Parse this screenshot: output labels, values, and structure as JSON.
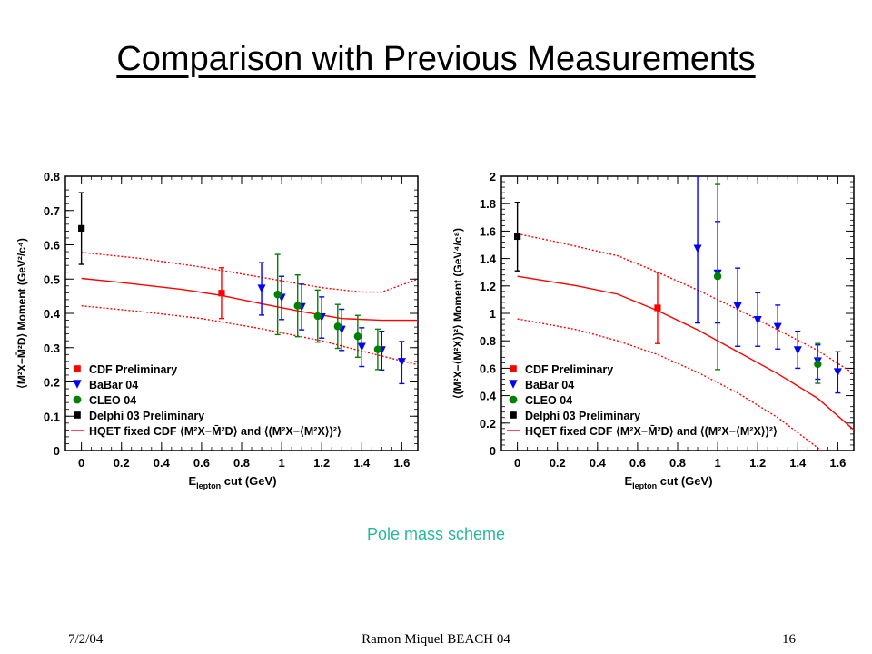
{
  "slide": {
    "title": "Comparison with Previous Measurements",
    "caption": "Pole mass scheme",
    "footer_date": "7/2/04",
    "footer_center": "Ramon Miquel     BEACH 04",
    "footer_page": "16"
  },
  "chart_data": [
    {
      "type": "scatter",
      "xlabel_main": "E",
      "xlabel_sub": "lepton",
      "xlabel_rest": " cut (GeV)",
      "ylabel": "⟨M²X−M̄²D⟩ Moment (GeV²/c⁴)",
      "xlim": [
        -0.08,
        1.68
      ],
      "ylim": [
        0,
        0.8
      ],
      "xticks": [
        "0",
        "0.2",
        "0.4",
        "0.6",
        "0.8",
        "1",
        "1.2",
        "1.4",
        "1.6"
      ],
      "xtick_values": [
        0,
        0.2,
        0.4,
        0.6,
        0.8,
        1.0,
        1.2,
        1.4,
        1.6
      ],
      "yticks": [
        "0",
        "0.1",
        "0.2",
        "0.3",
        "0.4",
        "0.5",
        "0.6",
        "0.7",
        "0.8"
      ],
      "ytick_values": [
        0,
        0.1,
        0.2,
        0.3,
        0.4,
        0.5,
        0.6,
        0.7,
        0.8
      ],
      "legend_position": "bottom-left",
      "legend": [
        {
          "label": "CDF Preliminary",
          "marker": "square",
          "color": "#ff0000"
        },
        {
          "label": "BaBar 04",
          "marker": "triangle-down",
          "color": "#0000ff"
        },
        {
          "label": "CLEO 04",
          "marker": "circle",
          "color": "#008000"
        },
        {
          "label": "Delphi 03 Preliminary",
          "marker": "square",
          "color": "#000000"
        },
        {
          "label": "HQET fixed CDF ⟨M²X−M̄²D⟩ and ⟨(M²X−⟨M²X⟩)²⟩",
          "marker": "line",
          "color": "#ff0000"
        }
      ],
      "series": [
        {
          "name": "Delphi 03 Preliminary",
          "marker": "square",
          "color": "#000000",
          "points": [
            {
              "x": 0.0,
              "y": 0.648,
              "lo": 0.543,
              "hi": 0.752
            }
          ]
        },
        {
          "name": "CDF Preliminary",
          "marker": "square",
          "color": "#ff0000",
          "points": [
            {
              "x": 0.7,
              "y": 0.459,
              "lo": 0.385,
              "hi": 0.533
            }
          ]
        },
        {
          "name": "BaBar 04",
          "marker": "triangle-down",
          "color": "#0000ff",
          "points": [
            {
              "x": 0.9,
              "y": 0.472,
              "lo": 0.395,
              "hi": 0.548
            },
            {
              "x": 1.0,
              "y": 0.445,
              "lo": 0.382,
              "hi": 0.508
            },
            {
              "x": 1.1,
              "y": 0.418,
              "lo": 0.352,
              "hi": 0.485
            },
            {
              "x": 1.2,
              "y": 0.388,
              "lo": 0.328,
              "hi": 0.448
            },
            {
              "x": 1.3,
              "y": 0.352,
              "lo": 0.292,
              "hi": 0.412
            },
            {
              "x": 1.4,
              "y": 0.302,
              "lo": 0.245,
              "hi": 0.358
            },
            {
              "x": 1.5,
              "y": 0.292,
              "lo": 0.235,
              "hi": 0.348
            },
            {
              "x": 1.6,
              "y": 0.258,
              "lo": 0.195,
              "hi": 0.318
            }
          ]
        },
        {
          "name": "CLEO 04",
          "marker": "circle",
          "color": "#008000",
          "points": [
            {
              "x": 0.98,
              "y": 0.455,
              "lo": 0.338,
              "hi": 0.572
            },
            {
              "x": 1.08,
              "y": 0.422,
              "lo": 0.332,
              "hi": 0.512
            },
            {
              "x": 1.18,
              "y": 0.392,
              "lo": 0.316,
              "hi": 0.468
            },
            {
              "x": 1.28,
              "y": 0.362,
              "lo": 0.298,
              "hi": 0.426
            },
            {
              "x": 1.38,
              "y": 0.333,
              "lo": 0.272,
              "hi": 0.394
            },
            {
              "x": 1.48,
              "y": 0.295,
              "lo": 0.236,
              "hi": 0.354
            }
          ]
        }
      ],
      "curves": [
        {
          "name": "central",
          "style": "solid",
          "color": "#ff0000",
          "x": [
            0,
            0.2,
            0.5,
            0.7,
            0.9,
            1.1,
            1.3,
            1.5,
            1.68
          ],
          "y": [
            0.502,
            0.49,
            0.47,
            0.452,
            0.428,
            0.405,
            0.385,
            0.38,
            0.38
          ]
        },
        {
          "name": "upper",
          "style": "dotted",
          "color": "#ff0000",
          "x": [
            0,
            0.3,
            0.6,
            0.9,
            1.2,
            1.4,
            1.5,
            1.68
          ],
          "y": [
            0.578,
            0.56,
            0.535,
            0.505,
            0.475,
            0.462,
            0.462,
            0.5
          ]
        },
        {
          "name": "lower",
          "style": "dotted",
          "color": "#ff0000",
          "x": [
            0,
            0.3,
            0.6,
            0.9,
            1.2,
            1.4,
            1.68
          ],
          "y": [
            0.422,
            0.405,
            0.385,
            0.355,
            0.32,
            0.29,
            0.25
          ]
        }
      ]
    },
    {
      "type": "scatter",
      "xlabel_main": "E",
      "xlabel_sub": "lepton",
      "xlabel_rest": " cut (GeV)",
      "ylabel": "⟨(M²X−⟨M²X⟩)²⟩ Moment (GeV⁴/c⁸)",
      "xlim": [
        -0.08,
        1.68
      ],
      "ylim": [
        0,
        2
      ],
      "xticks": [
        "0",
        "0.2",
        "0.4",
        "0.6",
        "0.8",
        "1",
        "1.2",
        "1.4",
        "1.6"
      ],
      "xtick_values": [
        0,
        0.2,
        0.4,
        0.6,
        0.8,
        1.0,
        1.2,
        1.4,
        1.6
      ],
      "yticks": [
        "0",
        "0.2",
        "0.4",
        "0.6",
        "0.8",
        "1",
        "1.2",
        "1.4",
        "1.6",
        "1.8",
        "2"
      ],
      "ytick_values": [
        0,
        0.2,
        0.4,
        0.6,
        0.8,
        1.0,
        1.2,
        1.4,
        1.6,
        1.8,
        2.0
      ],
      "legend_position": "bottom-left",
      "legend": [
        {
          "label": "CDF Preliminary",
          "marker": "square",
          "color": "#ff0000"
        },
        {
          "label": "BaBar 04",
          "marker": "triangle-down",
          "color": "#0000ff"
        },
        {
          "label": "CLEO 04",
          "marker": "circle",
          "color": "#008000"
        },
        {
          "label": "Delphi 03 Preliminary",
          "marker": "square",
          "color": "#000000"
        },
        {
          "label": "HQET fixed CDF ⟨M²X−M̄²D⟩ and ⟨(M²X−⟨M²X⟩)²⟩",
          "marker": "line",
          "color": "#ff0000"
        }
      ],
      "series": [
        {
          "name": "Delphi 03 Preliminary",
          "marker": "square",
          "color": "#000000",
          "points": [
            {
              "x": 0.0,
              "y": 1.56,
              "lo": 1.31,
              "hi": 1.81
            }
          ]
        },
        {
          "name": "CDF Preliminary",
          "marker": "square",
          "color": "#ff0000",
          "points": [
            {
              "x": 0.7,
              "y": 1.04,
              "lo": 0.78,
              "hi": 1.3
            }
          ]
        },
        {
          "name": "BaBar 04",
          "marker": "triangle-down",
          "color": "#0000ff",
          "points": [
            {
              "x": 0.9,
              "y": 1.47,
              "lo": 0.93,
              "hi": 2.0
            },
            {
              "x": 1.0,
              "y": 1.29,
              "lo": 0.93,
              "hi": 1.67
            },
            {
              "x": 1.1,
              "y": 1.05,
              "lo": 0.76,
              "hi": 1.33
            },
            {
              "x": 1.2,
              "y": 0.95,
              "lo": 0.76,
              "hi": 1.15
            },
            {
              "x": 1.3,
              "y": 0.9,
              "lo": 0.74,
              "hi": 1.06
            },
            {
              "x": 1.4,
              "y": 0.73,
              "lo": 0.6,
              "hi": 0.87
            },
            {
              "x": 1.5,
              "y": 0.65,
              "lo": 0.52,
              "hi": 0.77
            },
            {
              "x": 1.6,
              "y": 0.57,
              "lo": 0.42,
              "hi": 0.72
            }
          ]
        },
        {
          "name": "CLEO 04",
          "marker": "circle",
          "color": "#008000",
          "points": [
            {
              "x": 1.0,
              "y": 1.27,
              "lo": 0.59,
              "hi": 1.94
            },
            {
              "x": 1.5,
              "y": 0.63,
              "lo": 0.49,
              "hi": 0.78
            }
          ]
        }
      ],
      "curves": [
        {
          "name": "central",
          "style": "solid",
          "color": "#ff0000",
          "x": [
            0,
            0.3,
            0.5,
            0.7,
            0.9,
            1.1,
            1.3,
            1.5,
            1.68
          ],
          "y": [
            1.27,
            1.2,
            1.14,
            1.02,
            0.88,
            0.72,
            0.56,
            0.38,
            0.15
          ]
        },
        {
          "name": "upper",
          "style": "dotted",
          "color": "#ff0000",
          "x": [
            0,
            0.2,
            0.5,
            0.7,
            0.9,
            1.1,
            1.3,
            1.5,
            1.68
          ],
          "y": [
            1.58,
            1.52,
            1.42,
            1.3,
            1.17,
            1.03,
            0.88,
            0.73,
            0.56
          ]
        },
        {
          "name": "lower",
          "style": "dotted",
          "color": "#ff0000",
          "x": [
            0,
            0.3,
            0.5,
            0.7,
            0.9,
            1.1,
            1.3,
            1.5,
            1.55
          ],
          "y": [
            0.96,
            0.88,
            0.8,
            0.7,
            0.57,
            0.42,
            0.24,
            0.02,
            -0.05
          ]
        }
      ]
    }
  ]
}
